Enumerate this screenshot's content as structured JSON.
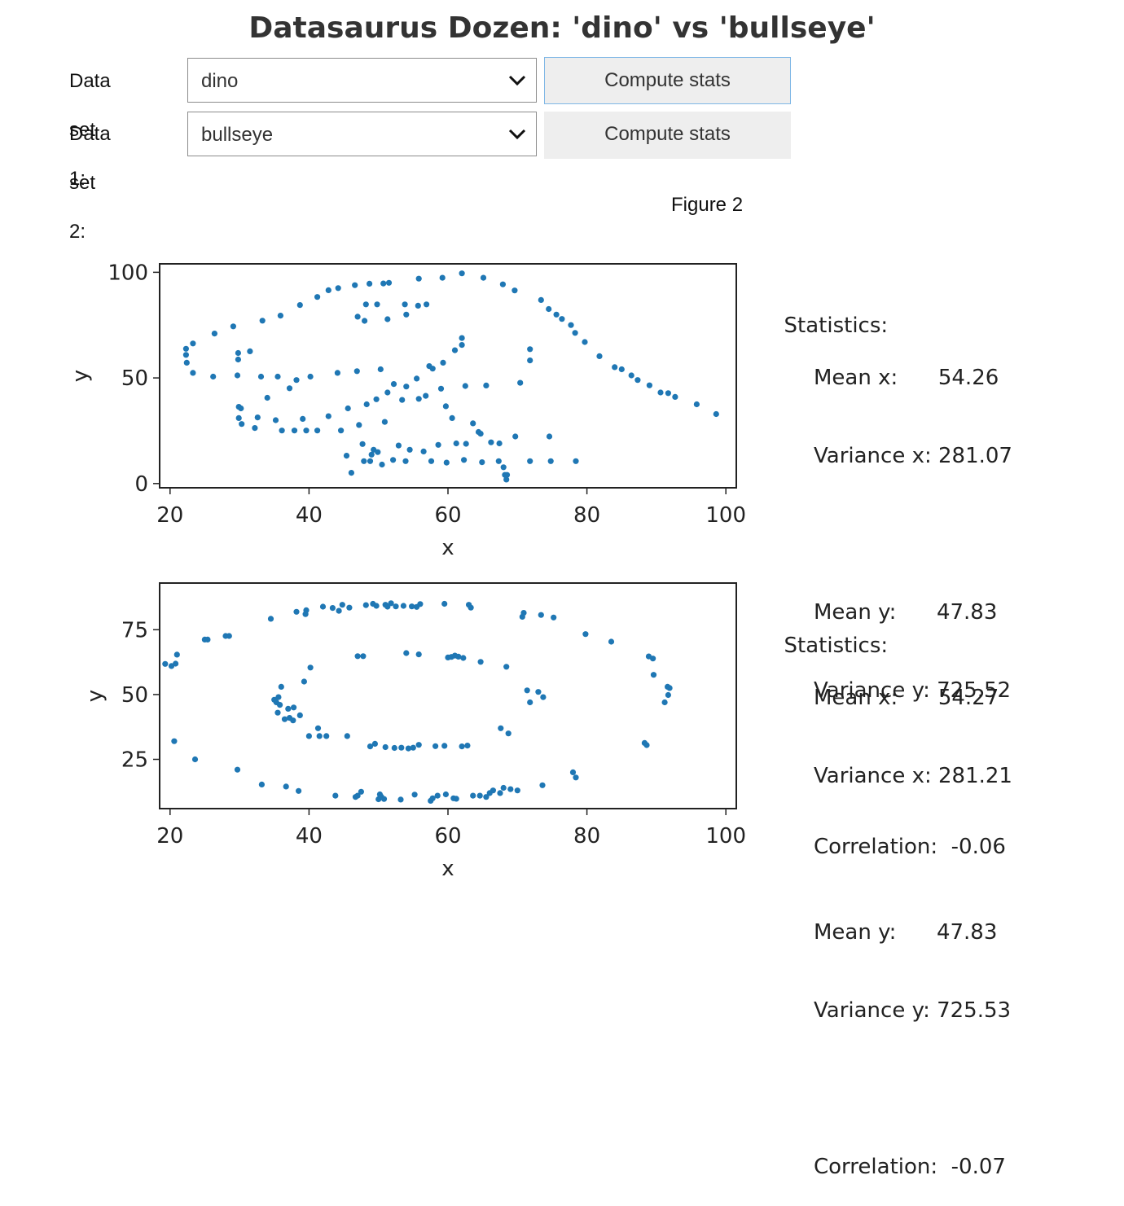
{
  "title": "Datasaurus Dozen: 'dino' vs 'bullseye'",
  "controls": [
    {
      "label": "Data set 1:",
      "selected": "dino",
      "button": "Compute stats"
    },
    {
      "label": "Data set 2:",
      "selected": "bullseye",
      "button": "Compute stats"
    }
  ],
  "figure_title": "Figure 2",
  "icons": {
    "dropdown": "chevron-down-icon"
  },
  "colors": {
    "points": "#1f77b4"
  },
  "stats": [
    {
      "heading": "Statistics:",
      "mean_x": "Mean x:      54.26",
      "var_x": "Variance x: 281.07",
      "mean_y": "Mean y:      47.83",
      "var_y": "Variance y: 725.52",
      "corr": "Correlation:  -0.06"
    },
    {
      "heading": "Statistics:",
      "mean_x": "Mean x:      54.27",
      "var_x": "Variance x: 281.21",
      "mean_y": "Mean y:      47.83",
      "var_y": "Variance y: 725.53",
      "corr": "Correlation:  -0.07"
    }
  ],
  "chart_data": [
    {
      "type": "scatter",
      "name": "dino",
      "xlabel": "x",
      "ylabel": "y",
      "xlim": [
        18.5,
        101.5
      ],
      "ylim": [
        -2,
        104
      ],
      "xticks": [
        20,
        40,
        60,
        80,
        100
      ],
      "yticks": [
        0,
        50,
        100
      ],
      "points": [
        [
          22.3,
          60.9
        ],
        [
          22.4,
          57.2
        ],
        [
          22.3,
          63.8
        ],
        [
          23.3,
          66.3
        ],
        [
          23.3,
          52.4
        ],
        [
          26.2,
          50.6
        ],
        [
          26.4,
          71.0
        ],
        [
          29.1,
          74.4
        ],
        [
          29.7,
          51.2
        ],
        [
          29.8,
          58.7
        ],
        [
          29.8,
          61.8
        ],
        [
          29.9,
          36.3
        ],
        [
          29.9,
          31.0
        ],
        [
          30.2,
          35.6
        ],
        [
          30.3,
          28.2
        ],
        [
          31.5,
          62.6
        ],
        [
          32.2,
          26.3
        ],
        [
          32.6,
          31.3
        ],
        [
          33.1,
          50.6
        ],
        [
          33.3,
          77.1
        ],
        [
          34.0,
          40.6
        ],
        [
          35.2,
          30.0
        ],
        [
          35.5,
          50.6
        ],
        [
          35.9,
          79.5
        ],
        [
          36.1,
          25.1
        ],
        [
          37.2,
          45.1
        ],
        [
          37.9,
          25.1
        ],
        [
          38.2,
          49.0
        ],
        [
          38.7,
          84.5
        ],
        [
          39.1,
          30.6
        ],
        [
          39.6,
          25.1
        ],
        [
          40.2,
          50.6
        ],
        [
          41.2,
          88.3
        ],
        [
          41.2,
          25.1
        ],
        [
          42.8,
          31.9
        ],
        [
          42.8,
          91.5
        ],
        [
          44.1,
          52.4
        ],
        [
          44.2,
          92.5
        ],
        [
          44.6,
          25.1
        ],
        [
          45.4,
          13.2
        ],
        [
          45.6,
          35.6
        ],
        [
          46.1,
          5.1
        ],
        [
          46.6,
          93.9
        ],
        [
          46.9,
          53.2
        ],
        [
          47.0,
          79.0
        ],
        [
          47.2,
          27.7
        ],
        [
          47.7,
          18.7
        ],
        [
          47.9,
          10.6
        ],
        [
          48.0,
          77.0
        ],
        [
          48.2,
          84.8
        ],
        [
          48.3,
          37.5
        ],
        [
          48.7,
          94.6
        ],
        [
          48.8,
          10.6
        ],
        [
          49.0,
          13.7
        ],
        [
          49.3,
          16.0
        ],
        [
          49.7,
          39.9
        ],
        [
          49.8,
          84.8
        ],
        [
          49.9,
          14.9
        ],
        [
          50.3,
          54.1
        ],
        [
          50.5,
          9.0
        ],
        [
          50.7,
          94.7
        ],
        [
          50.9,
          29.2
        ],
        [
          51.3,
          77.8
        ],
        [
          51.3,
          43.1
        ],
        [
          51.5,
          95.0
        ],
        [
          52.1,
          11.2
        ],
        [
          52.2,
          47.1
        ],
        [
          52.9,
          18.0
        ],
        [
          53.4,
          39.6
        ],
        [
          53.8,
          84.8
        ],
        [
          53.9,
          10.6
        ],
        [
          54.0,
          45.9
        ],
        [
          54.0,
          80.0
        ],
        [
          54.5,
          16.0
        ],
        [
          55.5,
          49.7
        ],
        [
          55.7,
          84.2
        ],
        [
          55.8,
          97.0
        ],
        [
          55.8,
          40.1
        ],
        [
          56.5,
          15.2
        ],
        [
          56.8,
          41.5
        ],
        [
          56.9,
          84.8
        ],
        [
          57.3,
          55.6
        ],
        [
          57.6,
          10.6
        ],
        [
          57.8,
          54.4
        ],
        [
          58.6,
          18.3
        ],
        [
          59.0,
          44.9
        ],
        [
          59.2,
          97.4
        ],
        [
          59.3,
          57.2
        ],
        [
          59.7,
          36.6
        ],
        [
          59.8,
          9.9
        ],
        [
          60.6,
          31.0
        ],
        [
          61.0,
          63.1
        ],
        [
          61.2,
          19.0
        ],
        [
          62.0,
          65.6
        ],
        [
          62.0,
          68.9
        ],
        [
          62.0,
          99.5
        ],
        [
          62.3,
          11.2
        ],
        [
          62.5,
          46.2
        ],
        [
          62.6,
          18.8
        ],
        [
          63.6,
          28.5
        ],
        [
          64.4,
          24.4
        ],
        [
          64.7,
          23.6
        ],
        [
          64.9,
          10.1
        ],
        [
          65.1,
          97.4
        ],
        [
          65.5,
          46.4
        ],
        [
          66.2,
          19.5
        ],
        [
          67.3,
          10.6
        ],
        [
          67.4,
          19.0
        ],
        [
          67.9,
          94.3
        ],
        [
          68.0,
          7.7
        ],
        [
          68.2,
          4.1
        ],
        [
          68.4,
          1.9
        ],
        [
          68.5,
          4.1
        ],
        [
          69.6,
          91.4
        ],
        [
          69.7,
          22.3
        ],
        [
          70.4,
          47.7
        ],
        [
          71.8,
          58.3
        ],
        [
          71.8,
          63.6
        ],
        [
          71.8,
          10.6
        ],
        [
          73.4,
          86.9
        ],
        [
          74.5,
          82.6
        ],
        [
          74.8,
          10.6
        ],
        [
          74.6,
          22.3
        ],
        [
          75.6,
          80.0
        ],
        [
          76.4,
          77.9
        ],
        [
          77.7,
          75.0
        ],
        [
          78.3,
          71.3
        ],
        [
          78.4,
          10.6
        ],
        [
          79.7,
          67.0
        ],
        [
          81.8,
          60.3
        ],
        [
          84.0,
          55.1
        ],
        [
          85.0,
          54.1
        ],
        [
          86.4,
          51.2
        ],
        [
          87.3,
          49.0
        ],
        [
          89.0,
          46.5
        ],
        [
          90.6,
          43.1
        ],
        [
          91.7,
          42.8
        ],
        [
          92.7,
          41.0
        ],
        [
          95.8,
          37.5
        ],
        [
          98.6,
          32.9
        ]
      ]
    },
    {
      "type": "scatter",
      "name": "bullseye",
      "xlabel": "x",
      "ylabel": "y",
      "xlim": [
        18.5,
        101.5
      ],
      "ylim": [
        6,
        93
      ],
      "xticks": [
        20,
        40,
        60,
        80,
        100
      ],
      "yticks": [
        25,
        50,
        75
      ],
      "points": [
        [
          19.3,
          61.8
        ],
        [
          20.2,
          61.0
        ],
        [
          20.6,
          32.0
        ],
        [
          20.8,
          61.9
        ],
        [
          21.0,
          65.4
        ],
        [
          23.6,
          25.0
        ],
        [
          25.0,
          71.2
        ],
        [
          25.4,
          71.2
        ],
        [
          28.0,
          72.6
        ],
        [
          28.5,
          72.6
        ],
        [
          29.7,
          21.0
        ],
        [
          33.2,
          15.3
        ],
        [
          34.5,
          79.2
        ],
        [
          35.0,
          48.0
        ],
        [
          35.3,
          47.0
        ],
        [
          35.5,
          43.0
        ],
        [
          35.6,
          49.0
        ],
        [
          35.8,
          46.0
        ],
        [
          36.0,
          53.0
        ],
        [
          36.5,
          40.5
        ],
        [
          36.7,
          14.5
        ],
        [
          37.0,
          44.5
        ],
        [
          37.2,
          41.0
        ],
        [
          37.7,
          40.0
        ],
        [
          37.8,
          45.0
        ],
        [
          38.2,
          81.9
        ],
        [
          38.5,
          12.8
        ],
        [
          38.7,
          42.0
        ],
        [
          39.3,
          55.0
        ],
        [
          39.5,
          81.0
        ],
        [
          39.6,
          82.5
        ],
        [
          40.0,
          34.0
        ],
        [
          40.2,
          60.4
        ],
        [
          41.3,
          37.0
        ],
        [
          41.5,
          34.0
        ],
        [
          42.0,
          83.9
        ],
        [
          42.5,
          34.0
        ],
        [
          43.4,
          83.4
        ],
        [
          43.8,
          11.0
        ],
        [
          44.3,
          82.3
        ],
        [
          44.8,
          84.6
        ],
        [
          45.5,
          34.0
        ],
        [
          45.8,
          83.5
        ],
        [
          46.7,
          10.5
        ],
        [
          47.0,
          11.0
        ],
        [
          47.0,
          64.8
        ],
        [
          47.5,
          12.5
        ],
        [
          47.8,
          64.8
        ],
        [
          48.2,
          84.5
        ],
        [
          48.8,
          30.0
        ],
        [
          49.2,
          85.0
        ],
        [
          49.5,
          31.0
        ],
        [
          49.7,
          84.2
        ],
        [
          50.0,
          9.6
        ],
        [
          50.2,
          11.5
        ],
        [
          50.4,
          10.6
        ],
        [
          50.8,
          9.7
        ],
        [
          51.0,
          84.6
        ],
        [
          51.0,
          29.7
        ],
        [
          51.3,
          83.9
        ],
        [
          51.8,
          85.2
        ],
        [
          52.3,
          29.4
        ],
        [
          52.5,
          84.0
        ],
        [
          53.2,
          9.5
        ],
        [
          53.3,
          29.5
        ],
        [
          53.6,
          84.2
        ],
        [
          54.0,
          66.0
        ],
        [
          54.3,
          29.2
        ],
        [
          54.8,
          84.0
        ],
        [
          55.0,
          29.5
        ],
        [
          55.2,
          11.4
        ],
        [
          55.5,
          83.8
        ],
        [
          55.8,
          30.6
        ],
        [
          55.8,
          65.5
        ],
        [
          56.0,
          84.9
        ],
        [
          57.5,
          9.0
        ],
        [
          57.8,
          10.0
        ],
        [
          58.2,
          30.1
        ],
        [
          58.5,
          11.0
        ],
        [
          59.5,
          30.2
        ],
        [
          59.5,
          85.0
        ],
        [
          59.7,
          11.5
        ],
        [
          60.0,
          64.3
        ],
        [
          60.5,
          64.5
        ],
        [
          60.8,
          10.0
        ],
        [
          61.0,
          65.0
        ],
        [
          61.2,
          9.8
        ],
        [
          61.5,
          64.6
        ],
        [
          62.0,
          30.0
        ],
        [
          62.2,
          64.1
        ],
        [
          62.8,
          30.3
        ],
        [
          63.0,
          84.6
        ],
        [
          63.3,
          83.5
        ],
        [
          63.6,
          11.0
        ],
        [
          64.6,
          11.0
        ],
        [
          64.7,
          62.6
        ],
        [
          65.5,
          10.5
        ],
        [
          66.0,
          12.0
        ],
        [
          66.5,
          13.0
        ],
        [
          67.5,
          12.0
        ],
        [
          68.0,
          14.0
        ],
        [
          67.6,
          37.0
        ],
        [
          68.4,
          60.7
        ],
        [
          68.7,
          35.0
        ],
        [
          69.0,
          13.5
        ],
        [
          70.0,
          13.0
        ],
        [
          70.7,
          80.0
        ],
        [
          70.9,
          81.5
        ],
        [
          71.4,
          51.6
        ],
        [
          71.8,
          47.0
        ],
        [
          73.0,
          51.0
        ],
        [
          73.7,
          49.0
        ],
        [
          73.4,
          80.7
        ],
        [
          73.6,
          15.0
        ],
        [
          75.2,
          79.7
        ],
        [
          78.0,
          20.0
        ],
        [
          78.4,
          18.0
        ],
        [
          79.8,
          73.3
        ],
        [
          83.5,
          70.4
        ],
        [
          88.3,
          31.3
        ],
        [
          88.6,
          30.5
        ],
        [
          88.9,
          64.7
        ],
        [
          89.5,
          63.9
        ],
        [
          89.6,
          57.6
        ],
        [
          91.2,
          47.0
        ],
        [
          91.6,
          53.0
        ],
        [
          91.9,
          52.5
        ],
        [
          91.7,
          49.8
        ]
      ]
    }
  ]
}
